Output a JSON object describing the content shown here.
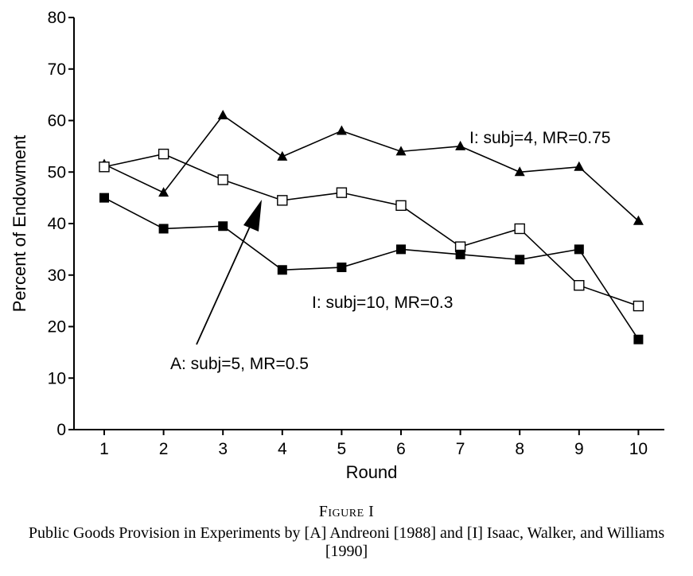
{
  "chart_data": {
    "type": "line",
    "ylabel": "Percent of Endowment",
    "xlabel": "Round",
    "x": [
      1,
      2,
      3,
      4,
      5,
      6,
      7,
      8,
      9,
      10
    ],
    "ylim": [
      0,
      80
    ],
    "yticks": [
      0,
      10,
      20,
      30,
      40,
      50,
      60,
      70,
      80
    ],
    "grid": false,
    "series": [
      {
        "marker": "filled-triangle",
        "values": [
          51.5,
          46,
          61,
          53,
          58,
          54,
          55,
          50,
          51,
          40.5
        ]
      },
      {
        "marker": "open-square",
        "values": [
          51,
          53.5,
          48.5,
          44.5,
          46,
          43.5,
          35.5,
          39,
          28,
          24
        ]
      },
      {
        "marker": "filled-square",
        "values": [
          45,
          39,
          39.5,
          31,
          31.5,
          35,
          34,
          33,
          35,
          17.5
        ]
      }
    ],
    "annotations": [
      {
        "text": "I: subj=4, MR=0.75",
        "series": 0
      },
      {
        "text": "A: subj=5, MR=0.5",
        "series": 1,
        "arrow": true
      },
      {
        "text": "I: subj=10, MR=0.3",
        "series": 2
      }
    ]
  },
  "caption": {
    "figure_number": "Figure I",
    "title": "Public Goods Provision in Experiments by [A] Andreoni [1988] and [I] Isaac, Walker, and Williams [1990]"
  }
}
